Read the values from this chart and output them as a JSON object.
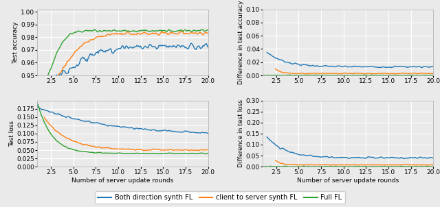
{
  "colors": [
    "#1f77b4",
    "#ff7f0e",
    "#2ca02c"
  ],
  "legend_labels": [
    "Both direction synth FL",
    "client to server synth FL",
    "Full FL"
  ],
  "xlabel": "Number of server update rounds",
  "ylabel_tl": "Test accuracy",
  "ylabel_bl": "Test loss",
  "ylabel_tr": "Difference in test accuracy",
  "ylabel_br": "Difference in test loss",
  "tick_fontsize": 6.5,
  "label_fontsize": 6.5,
  "legend_fontsize": 7,
  "background_color": "#eaeaea",
  "grid_color": "white",
  "xlim": [
    1,
    20
  ],
  "xticks": [
    2.5,
    5.0,
    7.5,
    10.0,
    12.5,
    15.0,
    17.5,
    20.0
  ],
  "xtick_labels": [
    "2.5",
    "5.0",
    "7.5",
    "10.0",
    "12.5",
    "15.0",
    "17.5",
    "20.0"
  ],
  "tl_ylim": [
    0.95,
    1.002
  ],
  "tl_yticks": [
    0.95,
    0.96,
    0.97,
    0.98,
    0.99,
    1.0
  ],
  "bl_ylim": [
    0.0,
    0.2
  ],
  "bl_yticks": [
    0.0,
    0.025,
    0.05,
    0.075,
    0.1,
    0.125,
    0.15,
    0.175
  ],
  "tr_ylim": [
    0.0,
    0.1
  ],
  "tr_yticks": [
    0.0,
    0.02,
    0.04,
    0.06,
    0.08,
    0.1
  ],
  "br_ylim": [
    0.0,
    0.3
  ],
  "br_yticks": [
    0.0,
    0.05,
    0.1,
    0.15,
    0.2,
    0.25,
    0.3
  ]
}
